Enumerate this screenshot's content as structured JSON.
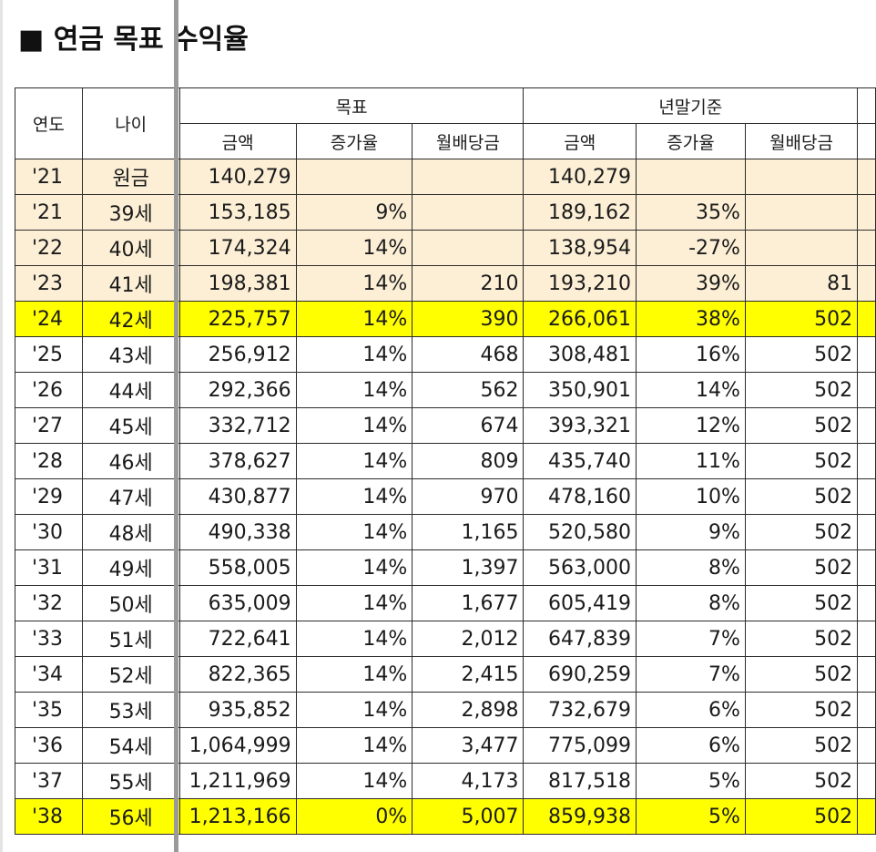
{
  "title": "■ 연금 목표 수익율",
  "header": {
    "year": "연도",
    "age": "나이",
    "target_group": "목표",
    "actual_group": "년말기준",
    "amount": "금액",
    "growth": "증가율",
    "monthly_dividend": "월배당금"
  },
  "rows": [
    {
      "year": "'21",
      "age": "원금",
      "t_amt": "140,279",
      "t_rate": "",
      "t_div": "",
      "a_amt": "140,279",
      "a_rate": "",
      "a_div": ""
    },
    {
      "year": "'21",
      "age": "39세",
      "t_amt": "153,185",
      "t_rate": "9%",
      "t_div": "",
      "a_amt": "189,162",
      "a_rate": "35%",
      "a_div": ""
    },
    {
      "year": "'22",
      "age": "40세",
      "t_amt": "174,324",
      "t_rate": "14%",
      "t_div": "",
      "a_amt": "138,954",
      "a_rate": "-27%",
      "a_div": ""
    },
    {
      "year": "'23",
      "age": "41세",
      "t_amt": "198,381",
      "t_rate": "14%",
      "t_div": "210",
      "a_amt": "193,210",
      "a_rate": "39%",
      "a_div": "81"
    },
    {
      "year": "'24",
      "age": "42세",
      "t_amt": "225,757",
      "t_rate": "14%",
      "t_div": "390",
      "a_amt": "266,061",
      "a_rate": "38%",
      "a_div": "502"
    },
    {
      "year": "'25",
      "age": "43세",
      "t_amt": "256,912",
      "t_rate": "14%",
      "t_div": "468",
      "a_amt": "308,481",
      "a_rate": "16%",
      "a_div": "502"
    },
    {
      "year": "'26",
      "age": "44세",
      "t_amt": "292,366",
      "t_rate": "14%",
      "t_div": "562",
      "a_amt": "350,901",
      "a_rate": "14%",
      "a_div": "502"
    },
    {
      "year": "'27",
      "age": "45세",
      "t_amt": "332,712",
      "t_rate": "14%",
      "t_div": "674",
      "a_amt": "393,321",
      "a_rate": "12%",
      "a_div": "502"
    },
    {
      "year": "'28",
      "age": "46세",
      "t_amt": "378,627",
      "t_rate": "14%",
      "t_div": "809",
      "a_amt": "435,740",
      "a_rate": "11%",
      "a_div": "502"
    },
    {
      "year": "'29",
      "age": "47세",
      "t_amt": "430,877",
      "t_rate": "14%",
      "t_div": "970",
      "a_amt": "478,160",
      "a_rate": "10%",
      "a_div": "502"
    },
    {
      "year": "'30",
      "age": "48세",
      "t_amt": "490,338",
      "t_rate": "14%",
      "t_div": "1,165",
      "a_amt": "520,580",
      "a_rate": "9%",
      "a_div": "502"
    },
    {
      "year": "'31",
      "age": "49세",
      "t_amt": "558,005",
      "t_rate": "14%",
      "t_div": "1,397",
      "a_amt": "563,000",
      "a_rate": "8%",
      "a_div": "502"
    },
    {
      "year": "'32",
      "age": "50세",
      "t_amt": "635,009",
      "t_rate": "14%",
      "t_div": "1,677",
      "a_amt": "605,419",
      "a_rate": "8%",
      "a_div": "502"
    },
    {
      "year": "'33",
      "age": "51세",
      "t_amt": "722,641",
      "t_rate": "14%",
      "t_div": "2,012",
      "a_amt": "647,839",
      "a_rate": "7%",
      "a_div": "502"
    },
    {
      "year": "'34",
      "age": "52세",
      "t_amt": "822,365",
      "t_rate": "14%",
      "t_div": "2,415",
      "a_amt": "690,259",
      "a_rate": "7%",
      "a_div": "502"
    },
    {
      "year": "'35",
      "age": "53세",
      "t_amt": "935,852",
      "t_rate": "14%",
      "t_div": "2,898",
      "a_amt": "732,679",
      "a_rate": "6%",
      "a_div": "502"
    },
    {
      "year": "'36",
      "age": "54세",
      "t_amt": "1,064,999",
      "t_rate": "14%",
      "t_div": "3,477",
      "a_amt": "775,099",
      "a_rate": "6%",
      "a_div": "502"
    },
    {
      "year": "'37",
      "age": "55세",
      "t_amt": "1,211,969",
      "t_rate": "14%",
      "t_div": "4,173",
      "a_amt": "817,518",
      "a_rate": "5%",
      "a_div": "502"
    },
    {
      "year": "'38",
      "age": "56세",
      "t_amt": "1,213,166",
      "t_rate": "0%",
      "t_div": "5,007",
      "a_amt": "859,938",
      "a_rate": "5%",
      "a_div": "502"
    }
  ],
  "highlight_color": "#ffff00",
  "base_row_color": "#fcefd6"
}
